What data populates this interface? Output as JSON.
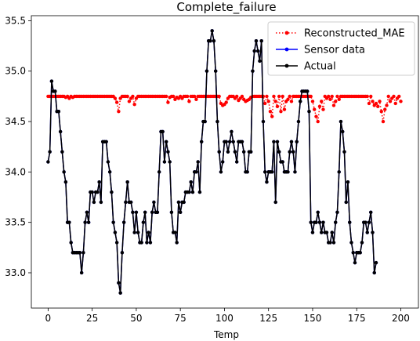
{
  "chart_data": {
    "type": "line",
    "title": "Complete_failure",
    "xlabel": "Temp",
    "ylabel": "",
    "xlim": [
      -9.5,
      210
    ],
    "ylim": [
      32.65,
      35.55
    ],
    "x_ticks": [
      0,
      25,
      50,
      75,
      100,
      125,
      150,
      175,
      200
    ],
    "y_ticks": [
      33.0,
      33.5,
      34.0,
      34.5,
      35.0,
      35.5
    ],
    "y_tick_labels": [
      "33.0",
      "33.5",
      "34.0",
      "34.5",
      "35.0",
      "35.5"
    ],
    "grid": false,
    "legend_position": "top-right",
    "series": [
      {
        "name": "Reconstructed_MAE",
        "color": "#ff0000",
        "style": "dotted",
        "values": [
          34.75,
          34.75,
          34.75,
          34.75,
          34.75,
          34.75,
          34.75,
          34.75,
          34.75,
          34.75,
          34.74,
          34.75,
          34.73,
          34.75,
          34.74,
          34.75,
          34.75,
          34.75,
          34.75,
          34.75,
          34.75,
          34.75,
          34.75,
          34.75,
          34.75,
          34.75,
          34.75,
          34.75,
          34.75,
          34.75,
          34.75,
          34.75,
          34.75,
          34.75,
          34.75,
          34.75,
          34.75,
          34.75,
          34.73,
          34.69,
          34.6,
          34.73,
          34.75,
          34.75,
          34.75,
          34.75,
          34.7,
          34.73,
          34.75,
          34.67,
          34.73,
          34.75,
          34.75,
          34.75,
          34.75,
          34.75,
          34.75,
          34.75,
          34.75,
          34.75,
          34.75,
          34.75,
          34.75,
          34.75,
          34.75,
          34.75,
          34.75,
          34.75,
          34.69,
          34.74,
          34.75,
          34.75,
          34.72,
          34.74,
          34.73,
          34.75,
          34.73,
          34.75,
          34.75,
          34.75,
          34.7,
          34.75,
          34.75,
          34.75,
          34.72,
          34.75,
          34.75,
          34.75,
          34.75,
          34.75,
          34.75,
          34.75,
          34.75,
          34.75,
          34.75,
          34.75,
          34.75,
          34.75,
          34.68,
          34.66,
          34.67,
          34.69,
          34.73,
          34.75,
          34.75,
          34.75,
          34.73,
          34.75,
          34.71,
          34.73,
          34.75,
          34.72,
          34.7,
          34.71,
          34.72,
          34.74,
          34.75,
          34.75,
          34.75,
          34.75,
          34.75,
          34.75,
          34.75,
          34.68,
          34.75,
          34.7,
          34.6,
          34.55,
          34.75,
          34.7,
          34.65,
          34.75,
          34.6,
          34.75,
          34.62,
          34.7,
          34.72,
          34.75,
          34.7,
          34.75,
          34.75,
          34.75,
          34.75,
          34.75,
          34.75,
          34.75,
          34.75,
          34.75,
          34.75,
          34.75,
          34.7,
          34.62,
          34.55,
          34.5,
          34.65,
          34.7,
          34.62,
          34.75,
          34.73,
          34.75,
          34.72,
          34.75,
          34.66,
          34.7,
          34.75,
          34.72,
          34.75,
          34.75,
          34.75,
          34.75,
          34.75,
          34.75,
          34.75,
          34.75,
          34.75,
          34.75,
          34.75,
          34.75,
          34.75,
          34.75,
          34.75,
          34.75,
          34.68,
          34.75,
          34.7,
          34.66,
          34.68,
          34.65,
          34.7,
          34.6,
          34.5,
          34.62,
          34.66,
          34.75,
          34.7,
          34.73,
          34.75,
          34.68,
          34.73,
          34.75,
          34.7
        ]
      },
      {
        "name": "Sensor data",
        "color": "#0000ff",
        "style": "solid",
        "values": [
          34.1,
          34.2,
          34.9,
          34.8,
          34.8,
          34.6,
          34.6,
          34.4,
          34.2,
          34.0,
          33.9,
          33.5,
          33.5,
          33.3,
          33.2,
          33.2,
          33.2,
          33.2,
          33.2,
          33.0,
          33.2,
          33.5,
          33.6,
          33.5,
          33.8,
          33.8,
          33.7,
          33.8,
          33.8,
          33.9,
          33.7,
          34.3,
          34.3,
          34.3,
          34.1,
          34.0,
          33.8,
          33.5,
          33.4,
          33.3,
          32.9,
          32.8,
          33.2,
          33.5,
          33.7,
          33.9,
          33.7,
          33.7,
          33.6,
          33.4,
          33.6,
          33.4,
          33.3,
          33.3,
          33.5,
          33.6,
          33.3,
          33.4,
          33.3,
          33.6,
          33.7,
          33.6,
          33.6,
          34.0,
          34.4,
          34.4,
          34.1,
          34.3,
          34.2,
          34.1,
          33.6,
          33.4,
          33.4,
          33.3,
          33.7,
          33.6,
          33.7,
          33.7,
          33.8,
          33.8,
          33.8,
          33.9,
          33.8,
          34.0,
          34.0,
          34.1,
          33.8,
          34.3,
          34.5,
          34.5,
          35.0,
          35.3,
          35.3,
          35.4,
          35.3,
          35.0,
          34.5,
          34.2,
          34.0,
          34.1,
          34.3,
          34.3,
          34.2,
          34.3,
          34.4,
          34.3,
          34.2,
          34.1,
          34.3,
          34.3,
          34.3,
          34.2,
          34.0,
          34.0,
          34.2,
          34.2,
          35.0,
          35.2,
          35.3,
          35.2,
          35.1,
          35.3,
          34.5,
          34.0,
          33.9,
          34.0,
          34.0,
          34.0,
          34.3,
          33.7,
          34.3,
          34.2,
          34.1,
          34.1,
          34.0,
          34.0,
          34.0,
          34.2,
          34.3,
          34.2,
          34.0,
          34.3,
          34.5,
          34.7,
          34.8,
          34.8,
          34.8,
          34.8,
          34.6,
          33.5,
          33.4,
          33.5,
          33.5,
          33.6,
          33.5,
          33.4,
          33.5,
          33.4,
          33.4,
          33.3,
          33.3,
          33.4,
          33.3,
          33.5,
          33.6,
          34.0,
          34.5,
          34.4,
          34.2,
          33.7,
          33.9,
          33.5,
          33.3,
          33.2,
          33.1,
          33.2,
          33.2,
          33.2,
          33.3,
          33.5,
          33.5,
          33.4,
          33.5,
          33.6,
          33.4,
          33.0,
          33.1
        ]
      },
      {
        "name": "Actual",
        "color": "#000000",
        "style": "solid",
        "values": [
          34.1,
          34.2,
          34.9,
          34.8,
          34.8,
          34.6,
          34.6,
          34.4,
          34.2,
          34.0,
          33.9,
          33.5,
          33.5,
          33.3,
          33.2,
          33.2,
          33.2,
          33.2,
          33.2,
          33.0,
          33.2,
          33.5,
          33.6,
          33.5,
          33.8,
          33.8,
          33.7,
          33.8,
          33.8,
          33.9,
          33.7,
          34.3,
          34.3,
          34.3,
          34.1,
          34.0,
          33.8,
          33.5,
          33.4,
          33.3,
          32.9,
          32.8,
          33.2,
          33.5,
          33.7,
          33.9,
          33.7,
          33.7,
          33.6,
          33.4,
          33.6,
          33.4,
          33.3,
          33.3,
          33.5,
          33.6,
          33.3,
          33.4,
          33.3,
          33.6,
          33.7,
          33.6,
          33.6,
          34.0,
          34.4,
          34.4,
          34.1,
          34.3,
          34.2,
          34.1,
          33.6,
          33.4,
          33.4,
          33.3,
          33.7,
          33.6,
          33.7,
          33.7,
          33.8,
          33.8,
          33.8,
          33.9,
          33.8,
          34.0,
          34.0,
          34.1,
          33.8,
          34.3,
          34.5,
          34.5,
          35.0,
          35.3,
          35.3,
          35.4,
          35.3,
          35.0,
          34.5,
          34.2,
          34.0,
          34.1,
          34.3,
          34.3,
          34.2,
          34.3,
          34.4,
          34.3,
          34.2,
          34.1,
          34.3,
          34.3,
          34.3,
          34.2,
          34.0,
          34.0,
          34.2,
          34.2,
          35.0,
          35.2,
          35.3,
          35.2,
          35.1,
          35.3,
          34.5,
          34.0,
          33.9,
          34.0,
          34.0,
          34.0,
          34.3,
          33.7,
          34.3,
          34.2,
          34.1,
          34.1,
          34.0,
          34.0,
          34.0,
          34.2,
          34.3,
          34.2,
          34.0,
          34.3,
          34.5,
          34.7,
          34.8,
          34.8,
          34.8,
          34.8,
          34.6,
          33.5,
          33.4,
          33.5,
          33.5,
          33.6,
          33.5,
          33.4,
          33.5,
          33.4,
          33.4,
          33.3,
          33.3,
          33.4,
          33.3,
          33.5,
          33.6,
          34.0,
          34.5,
          34.4,
          34.2,
          33.7,
          33.9,
          33.5,
          33.3,
          33.2,
          33.1,
          33.2,
          33.2,
          33.2,
          33.3,
          33.5,
          33.5,
          33.4,
          33.5,
          33.6,
          33.4,
          33.0,
          33.1
        ]
      }
    ]
  }
}
